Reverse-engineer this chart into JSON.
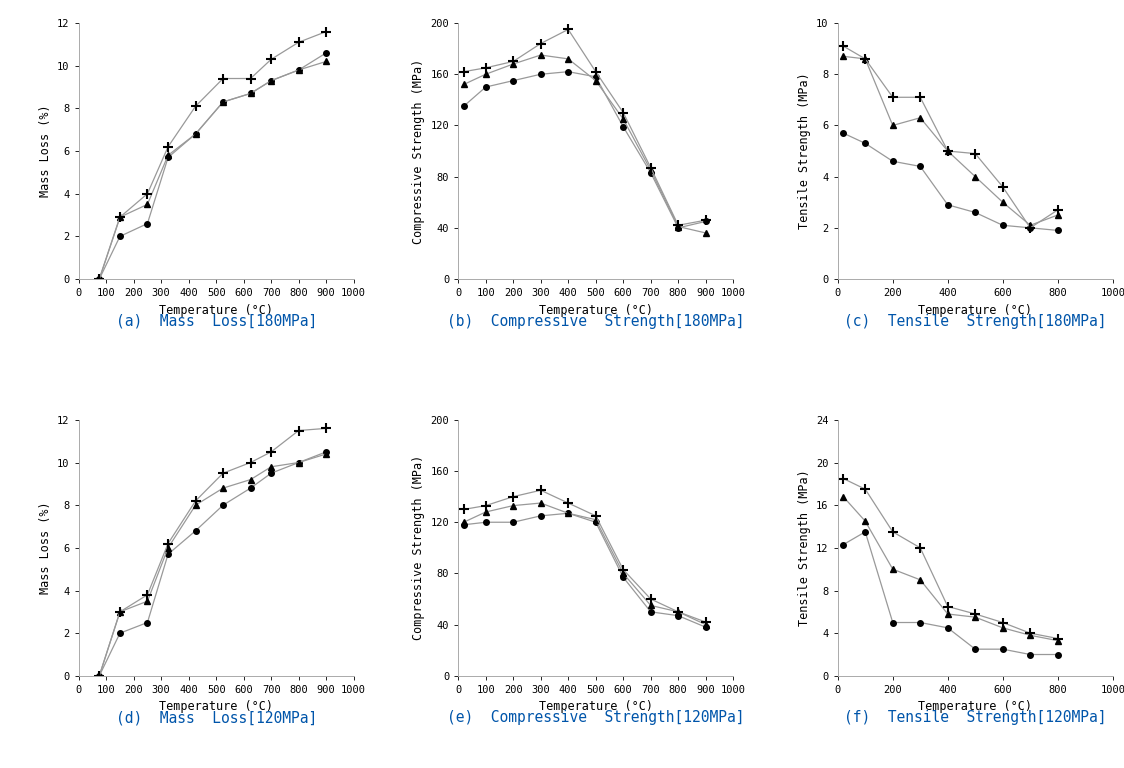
{
  "subplots": [
    {
      "title": "(a)  Mass  Loss[180MPa]",
      "xlabel": "Temperature (°C)",
      "ylabel": "Mass Loss (%)",
      "xlim": [
        0,
        1000
      ],
      "ylim": [
        0,
        12
      ],
      "xticks": [
        0,
        100,
        200,
        300,
        400,
        500,
        600,
        700,
        800,
        900,
        1000
      ],
      "yticks": [
        0,
        2,
        4,
        6,
        8,
        10,
        12
      ],
      "series": [
        {
          "x": [
            75,
            150,
            250,
            325,
            425,
            525,
            625,
            700,
            800,
            900
          ],
          "y": [
            0,
            2.0,
            2.6,
            5.7,
            6.8,
            8.3,
            8.7,
            9.3,
            9.8,
            10.6
          ],
          "marker": "o",
          "markersize": 4
        },
        {
          "x": [
            75,
            150,
            250,
            325,
            425,
            525,
            625,
            700,
            800,
            900
          ],
          "y": [
            0,
            2.9,
            3.5,
            5.8,
            6.8,
            8.3,
            8.7,
            9.3,
            9.8,
            10.2
          ],
          "marker": "^",
          "markersize": 4
        },
        {
          "x": [
            75,
            150,
            250,
            325,
            425,
            525,
            625,
            700,
            800,
            900
          ],
          "y": [
            0,
            2.9,
            4.0,
            6.2,
            8.1,
            9.4,
            9.4,
            10.3,
            11.1,
            11.6
          ],
          "marker": "+",
          "markersize": 7
        }
      ]
    },
    {
      "title": "(b)  Compressive  Strength[180MPa]",
      "xlabel": "Temperature (°C)",
      "ylabel": "Compressive Strength (MPa)",
      "xlim": [
        0,
        1000
      ],
      "ylim": [
        0,
        200
      ],
      "xticks": [
        0,
        100,
        200,
        300,
        400,
        500,
        600,
        700,
        800,
        900,
        1000
      ],
      "yticks": [
        0,
        40,
        80,
        120,
        160,
        200
      ],
      "series": [
        {
          "x": [
            20,
            100,
            200,
            300,
            400,
            500,
            600,
            700,
            800,
            900
          ],
          "y": [
            135,
            150,
            155,
            160,
            162,
            158,
            119,
            83,
            40,
            45
          ],
          "marker": "o",
          "markersize": 4
        },
        {
          "x": [
            20,
            100,
            200,
            300,
            400,
            500,
            600,
            700,
            800,
            900
          ],
          "y": [
            152,
            160,
            168,
            175,
            172,
            155,
            125,
            85,
            41,
            36
          ],
          "marker": "^",
          "markersize": 4
        },
        {
          "x": [
            20,
            100,
            200,
            300,
            400,
            500,
            600,
            700,
            800,
            900
          ],
          "y": [
            162,
            165,
            170,
            184,
            195,
            162,
            130,
            87,
            42,
            46
          ],
          "marker": "+",
          "markersize": 7
        }
      ]
    },
    {
      "title": "(c)  Tensile  Strength[180MPa]",
      "xlabel": "Temperature (°C)",
      "ylabel": "Tensile Strength (MPa)",
      "xlim": [
        0,
        1000
      ],
      "ylim": [
        0,
        10
      ],
      "xticks": [
        0,
        200,
        400,
        600,
        800,
        1000
      ],
      "yticks": [
        0,
        2,
        4,
        6,
        8,
        10
      ],
      "series": [
        {
          "x": [
            20,
            100,
            200,
            300,
            400,
            500,
            600,
            700,
            800
          ],
          "y": [
            5.7,
            5.3,
            4.6,
            4.4,
            2.9,
            2.6,
            2.1,
            2.0,
            1.9
          ],
          "marker": "o",
          "markersize": 4
        },
        {
          "x": [
            20,
            100,
            200,
            300,
            400,
            500,
            600,
            700,
            800
          ],
          "y": [
            8.7,
            8.6,
            6.0,
            6.3,
            5.0,
            4.0,
            3.0,
            2.1,
            2.5
          ],
          "marker": "^",
          "markersize": 4
        },
        {
          "x": [
            20,
            100,
            200,
            300,
            400,
            500,
            600,
            700,
            800
          ],
          "y": [
            9.1,
            8.6,
            7.1,
            7.1,
            5.0,
            4.9,
            3.6,
            2.0,
            2.7
          ],
          "marker": "+",
          "markersize": 7
        }
      ]
    },
    {
      "title": "(d)  Mass  Loss[120MPa]",
      "xlabel": "Temperature (°C)",
      "ylabel": "Mass Loss (%)",
      "xlim": [
        0,
        1000
      ],
      "ylim": [
        0,
        12
      ],
      "xticks": [
        0,
        100,
        200,
        300,
        400,
        500,
        600,
        700,
        800,
        900,
        1000
      ],
      "yticks": [
        0,
        2,
        4,
        6,
        8,
        10,
        12
      ],
      "series": [
        {
          "x": [
            75,
            150,
            250,
            325,
            425,
            525,
            625,
            700,
            800,
            900
          ],
          "y": [
            0,
            2.0,
            2.5,
            5.7,
            6.8,
            8.0,
            8.8,
            9.5,
            10.0,
            10.5
          ],
          "marker": "o",
          "markersize": 4
        },
        {
          "x": [
            75,
            150,
            250,
            325,
            425,
            525,
            625,
            700,
            800,
            900
          ],
          "y": [
            0,
            3.0,
            3.5,
            6.0,
            8.0,
            8.8,
            9.2,
            9.8,
            10.0,
            10.4
          ],
          "marker": "^",
          "markersize": 4
        },
        {
          "x": [
            75,
            150,
            250,
            325,
            425,
            525,
            625,
            700,
            800,
            900
          ],
          "y": [
            0,
            3.0,
            3.8,
            6.2,
            8.2,
            9.5,
            10.0,
            10.5,
            11.5,
            11.6
          ],
          "marker": "+",
          "markersize": 7
        }
      ]
    },
    {
      "title": "(e)  Compressive  Strength[120MPa]",
      "xlabel": "Temperature (°C)",
      "ylabel": "Compressive Strength (MPa)",
      "xlim": [
        0,
        1000
      ],
      "ylim": [
        0,
        200
      ],
      "xticks": [
        0,
        100,
        200,
        300,
        400,
        500,
        600,
        700,
        800,
        900,
        1000
      ],
      "yticks": [
        0,
        40,
        80,
        120,
        160,
        200
      ],
      "series": [
        {
          "x": [
            20,
            100,
            200,
            300,
            400,
            500,
            600,
            700,
            800,
            900
          ],
          "y": [
            118,
            120,
            120,
            125,
            127,
            120,
            77,
            50,
            47,
            38
          ],
          "marker": "o",
          "markersize": 4
        },
        {
          "x": [
            20,
            100,
            200,
            300,
            400,
            500,
            600,
            700,
            800,
            900
          ],
          "y": [
            120,
            128,
            133,
            135,
            127,
            122,
            80,
            55,
            50,
            40
          ],
          "marker": "^",
          "markersize": 4
        },
        {
          "x": [
            20,
            100,
            200,
            300,
            400,
            500,
            600,
            700,
            800,
            900
          ],
          "y": [
            130,
            133,
            140,
            145,
            135,
            125,
            83,
            60,
            50,
            42
          ],
          "marker": "+",
          "markersize": 7
        }
      ]
    },
    {
      "title": "(f)  Tensile  Strength[120MPa]",
      "xlabel": "Temperature (°C)",
      "ylabel": "Tensile Strength (MPa)",
      "xlim": [
        0,
        1000
      ],
      "ylim": [
        0,
        24
      ],
      "xticks": [
        0,
        200,
        400,
        600,
        800,
        1000
      ],
      "yticks": [
        0,
        4,
        8,
        12,
        16,
        20,
        24
      ],
      "series": [
        {
          "x": [
            20,
            100,
            200,
            300,
            400,
            500,
            600,
            700,
            800
          ],
          "y": [
            12.3,
            13.5,
            5.0,
            5.0,
            4.5,
            2.5,
            2.5,
            2.0,
            2.0
          ],
          "marker": "o",
          "markersize": 4
        },
        {
          "x": [
            20,
            100,
            200,
            300,
            400,
            500,
            600,
            700,
            800
          ],
          "y": [
            16.8,
            14.5,
            10.0,
            9.0,
            5.8,
            5.5,
            4.5,
            3.8,
            3.3
          ],
          "marker": "^",
          "markersize": 4
        },
        {
          "x": [
            20,
            100,
            200,
            300,
            400,
            500,
            600,
            700,
            800
          ],
          "y": [
            18.5,
            17.5,
            13.5,
            12.0,
            6.5,
            5.8,
            5.0,
            4.0,
            3.5
          ],
          "marker": "+",
          "markersize": 7
        }
      ]
    }
  ],
  "line_color": "#999999",
  "line_width": 0.9,
  "marker_color": "black",
  "background_color": "white",
  "title_color": "#0055AA",
  "title_fontsize": 10.5,
  "axis_label_fontsize": 8.5,
  "tick_fontsize": 7.5
}
